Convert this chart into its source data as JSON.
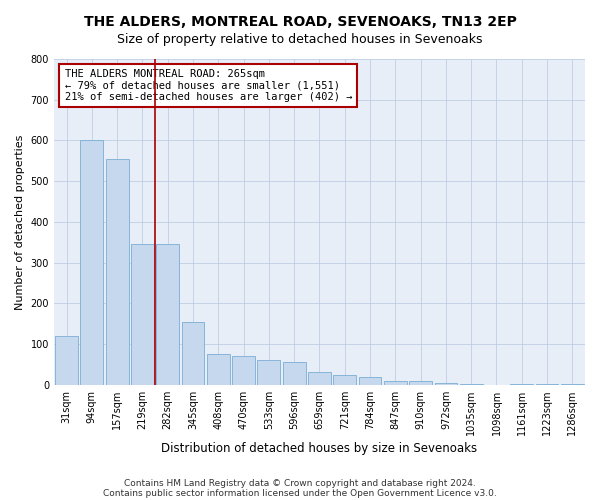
{
  "title": "THE ALDERS, MONTREAL ROAD, SEVENOAKS, TN13 2EP",
  "subtitle": "Size of property relative to detached houses in Sevenoaks",
  "xlabel": "Distribution of detached houses by size in Sevenoaks",
  "ylabel": "Number of detached properties",
  "categories": [
    "31sqm",
    "94sqm",
    "157sqm",
    "219sqm",
    "282sqm",
    "345sqm",
    "408sqm",
    "470sqm",
    "533sqm",
    "596sqm",
    "659sqm",
    "721sqm",
    "784sqm",
    "847sqm",
    "910sqm",
    "972sqm",
    "1035sqm",
    "1098sqm",
    "1161sqm",
    "1223sqm",
    "1286sqm"
  ],
  "values": [
    120,
    600,
    555,
    345,
    345,
    155,
    75,
    70,
    60,
    55,
    30,
    25,
    20,
    10,
    10,
    5,
    2,
    0,
    2,
    2,
    2
  ],
  "bar_color": "#c5d8ee",
  "bar_edgecolor": "#7aaed4",
  "marker_line_color": "#aa0000",
  "marker_bar_index": 3.5,
  "annotation_text": "THE ALDERS MONTREAL ROAD: 265sqm\n← 79% of detached houses are smaller (1,551)\n21% of semi-detached houses are larger (402) →",
  "ylim": [
    0,
    800
  ],
  "yticks": [
    0,
    100,
    200,
    300,
    400,
    500,
    600,
    700,
    800
  ],
  "footnote1": "Contains HM Land Registry data © Crown copyright and database right 2024.",
  "footnote2": "Contains public sector information licensed under the Open Government Licence v3.0.",
  "title_fontsize": 10,
  "subtitle_fontsize": 9,
  "xlabel_fontsize": 8.5,
  "ylabel_fontsize": 8,
  "tick_fontsize": 7,
  "annotation_fontsize": 7.5,
  "footnote_fontsize": 6.5,
  "bg_color": "#e8eef8"
}
